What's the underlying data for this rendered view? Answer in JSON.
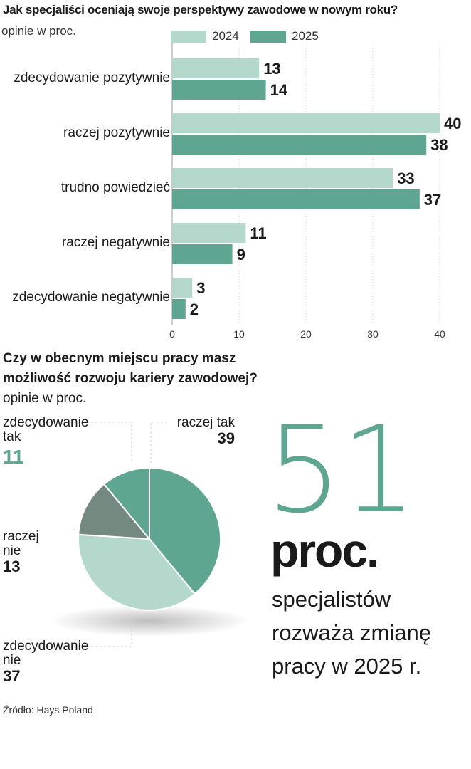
{
  "chart_data": [
    {
      "type": "bar",
      "orientation": "horizontal",
      "title": "Jak specjaliści oceniają swoje perspektywy zawodowe w nowym roku?",
      "subtitle": "opinie w proc.",
      "categories": [
        "zdecydowanie pozytywnie",
        "raczej pozytywnie",
        "trudno powiedzieć",
        "raczej negatywnie",
        "zdecydowanie negatywnie"
      ],
      "series": [
        {
          "name": "2024",
          "values": [
            13,
            40,
            33,
            11,
            3
          ],
          "color": "#b5d8cd"
        },
        {
          "name": "2025",
          "values": [
            14,
            38,
            37,
            9,
            2
          ],
          "color": "#5ea592"
        }
      ],
      "xlim": [
        0,
        40
      ],
      "xticks": [
        0,
        10,
        20,
        30,
        40
      ],
      "grid": true,
      "legend": "top"
    },
    {
      "type": "pie",
      "title": "Czy w obecnym miejscu pracy masz możliwość rozwoju kariery zawodowej?",
      "subtitle": "opinie w proc.",
      "slices": [
        {
          "label": "raczej tak",
          "value": 39,
          "color": "#5ea592"
        },
        {
          "label": "zdecydowanie nie",
          "value": 37,
          "color": "#b5d8cd"
        },
        {
          "label": "raczej nie",
          "value": 13,
          "color": "#74897f"
        },
        {
          "label": "zdecydowanie tak",
          "value": 11,
          "color": "#5ea592"
        }
      ]
    }
  ],
  "labels": {
    "tak_zdecydowanie_line1": "zdecydowanie",
    "tak_zdecydowanie_line2": "tak",
    "tak_zdecydowanie_value": "11",
    "raczej_tak": "raczej tak",
    "raczej_tak_value": "39",
    "raczej_nie_line1": "raczej",
    "raczej_nie_line2": "nie",
    "raczej_nie_value": "13",
    "nie_zdecydowanie_line1": "zdecydowanie",
    "nie_zdecydowanie_line2": "nie",
    "nie_zdecydowanie_value": "37"
  },
  "highlight": {
    "number": "51",
    "unit": "proc.",
    "line1": "specjalistów",
    "line2": "rozważa zmianę",
    "line3": "pracy w 2025 r."
  },
  "source": "Źródło: Hays Poland",
  "colors": {
    "light": "#b5d8cd",
    "dark": "#5ea592",
    "grey": "#74897f",
    "accent_text": "#5ea592"
  }
}
